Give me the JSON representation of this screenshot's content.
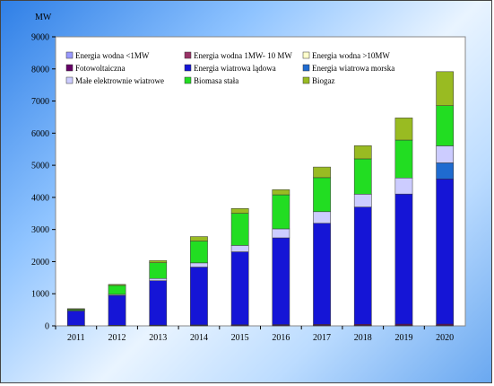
{
  "chart_data": {
    "type": "bar",
    "stacked": true,
    "unit_label": "MW",
    "categories": [
      "2011",
      "2012",
      "2013",
      "2014",
      "2015",
      "2016",
      "2017",
      "2018",
      "2019",
      "2020"
    ],
    "ylim": [
      0,
      9000
    ],
    "yticks": [
      0,
      1000,
      2000,
      3000,
      4000,
      5000,
      6000,
      7000,
      8000,
      9000
    ],
    "grid": false,
    "legend_position": "top-left",
    "legend_columns": 3,
    "series": [
      {
        "name": "Energia wodna <1MW",
        "color": "#9999ff",
        "values": [
          5,
          5,
          5,
          5,
          5,
          5,
          5,
          5,
          5,
          5
        ]
      },
      {
        "name": "Energia wodna 1MW- 10 MW",
        "color": "#993366",
        "values": [
          5,
          5,
          5,
          5,
          5,
          5,
          5,
          5,
          5,
          5
        ]
      },
      {
        "name": "Energia wodna >10MW",
        "color": "#ffffcc",
        "values": [
          5,
          5,
          5,
          5,
          5,
          5,
          5,
          5,
          5,
          5
        ]
      },
      {
        "name": "Fotowoltaiczna",
        "color": "#660066",
        "values": [
          0,
          5,
          10,
          15,
          20,
          25,
          30,
          35,
          40,
          40
        ]
      },
      {
        "name": "Energia wiatrowa lądowa",
        "color": "#1515d6",
        "values": [
          450,
          930,
          1380,
          1800,
          2270,
          2700,
          3150,
          3650,
          4050,
          4520
        ]
      },
      {
        "name": "Energia wiatrowa morska",
        "color": "#1f6bd0",
        "values": [
          0,
          0,
          0,
          0,
          0,
          0,
          0,
          0,
          0,
          500
        ]
      },
      {
        "name": "Małe elektrownie wiatrowe",
        "color": "#ccccff",
        "values": [
          20,
          30,
          70,
          130,
          200,
          280,
          360,
          400,
          500,
          530
        ]
      },
      {
        "name": "Biomasa stała",
        "color": "#22dd22",
        "values": [
          30,
          280,
          490,
          680,
          1000,
          1060,
          1060,
          1100,
          1180,
          1250
        ]
      },
      {
        "name": "Biogaz",
        "color": "#99bb22",
        "values": [
          20,
          30,
          70,
          140,
          150,
          160,
          330,
          410,
          690,
          1060
        ]
      }
    ]
  }
}
